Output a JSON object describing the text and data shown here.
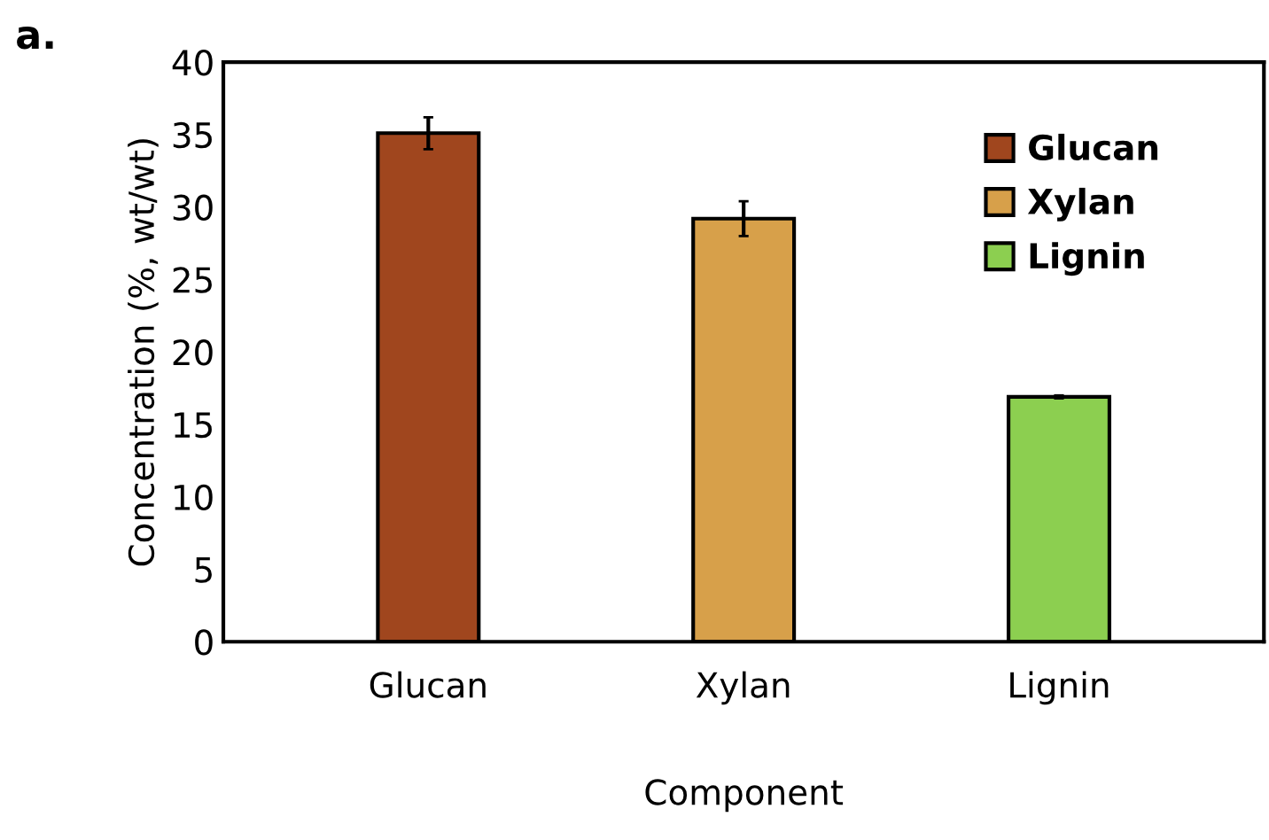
{
  "chart_data": {
    "type": "bar",
    "title": "a.",
    "xlabel": "Component",
    "ylabel": "Concentration (%, wt/wt)",
    "categories": [
      "Glucan",
      "Xylan",
      "Lignin"
    ],
    "stacked": true,
    "series": [
      {
        "name": "Glucan",
        "color": "#a0461e",
        "values": [
          35.1,
          null,
          null
        ],
        "errors": [
          1.1,
          null,
          null
        ]
      },
      {
        "name": "Xylan",
        "color": "#d7a04a",
        "values": [
          null,
          29.2,
          null
        ],
        "errors": [
          null,
          1.2,
          null
        ]
      },
      {
        "name": "Lignin",
        "color": "#8ccf50",
        "values": [
          null,
          null,
          16.9
        ],
        "errors": [
          null,
          null,
          0.1
        ]
      }
    ],
    "ylim": [
      0,
      40
    ],
    "yticks": [
      0,
      5,
      10,
      15,
      20,
      25,
      30,
      35,
      40
    ],
    "grid": false,
    "legend": "top right"
  }
}
